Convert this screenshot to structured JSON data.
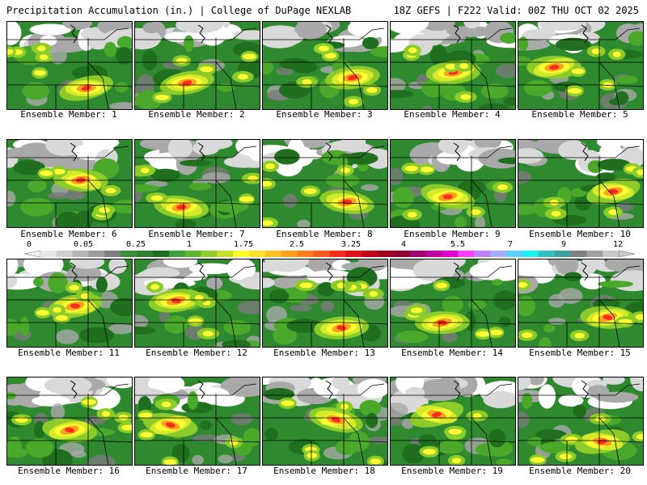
{
  "header": {
    "title_left": "Precipitation Accumulation (in.) | College of DuPage NEXLAB",
    "title_right": "18Z GEFS | F222 Valid: 00Z THU OCT 02 2025"
  },
  "colorbar": {
    "labels": [
      "0",
      "0.05",
      "0.25",
      "1",
      "1.75",
      "2.5",
      "3.25",
      "4",
      "5.5",
      "7",
      "9",
      "12"
    ],
    "colors": [
      "#e6e6e6",
      "#cfcfcf",
      "#b5b5b5",
      "#9c9c9c",
      "#7f7f7f",
      "#3a8f3a",
      "#2f7f2f",
      "#1f6b1f",
      "#3fa03f",
      "#5fb52f",
      "#8fcf2f",
      "#c6e02a",
      "#ffff2a",
      "#ffe02a",
      "#ffc02a",
      "#ff9f1f",
      "#ff7f1f",
      "#ff5a1f",
      "#ff2a1f",
      "#e0101a",
      "#c00018",
      "#a00020",
      "#8a0030",
      "#a0006f",
      "#c0009f",
      "#e000d0",
      "#ff40ff",
      "#c080ff",
      "#9fb0ff",
      "#60d0ff",
      "#20f0f0",
      "#30c0c0",
      "#40a0a0",
      "#808080",
      "#a0a0a0",
      "#c8c8c8"
    ]
  },
  "members": [
    {
      "label": "Ensemble Member: 1"
    },
    {
      "label": "Ensemble Member: 2"
    },
    {
      "label": "Ensemble Member: 3"
    },
    {
      "label": "Ensemble Member: 4"
    },
    {
      "label": "Ensemble Member: 5"
    },
    {
      "label": "Ensemble Member: 6"
    },
    {
      "label": "Ensemble Member: 7"
    },
    {
      "label": "Ensemble Member: 8"
    },
    {
      "label": "Ensemble Member: 9"
    },
    {
      "label": "Ensemble Member: 10"
    },
    {
      "label": "Ensemble Member: 11"
    },
    {
      "label": "Ensemble Member: 12"
    },
    {
      "label": "Ensemble Member: 13"
    },
    {
      "label": "Ensemble Member: 14"
    },
    {
      "label": "Ensemble Member: 15"
    },
    {
      "label": "Ensemble Member: 16"
    },
    {
      "label": "Ensemble Member: 17"
    },
    {
      "label": "Ensemble Member: 18"
    },
    {
      "label": "Ensemble Member: 19"
    },
    {
      "label": "Ensemble Member: 20"
    }
  ]
}
